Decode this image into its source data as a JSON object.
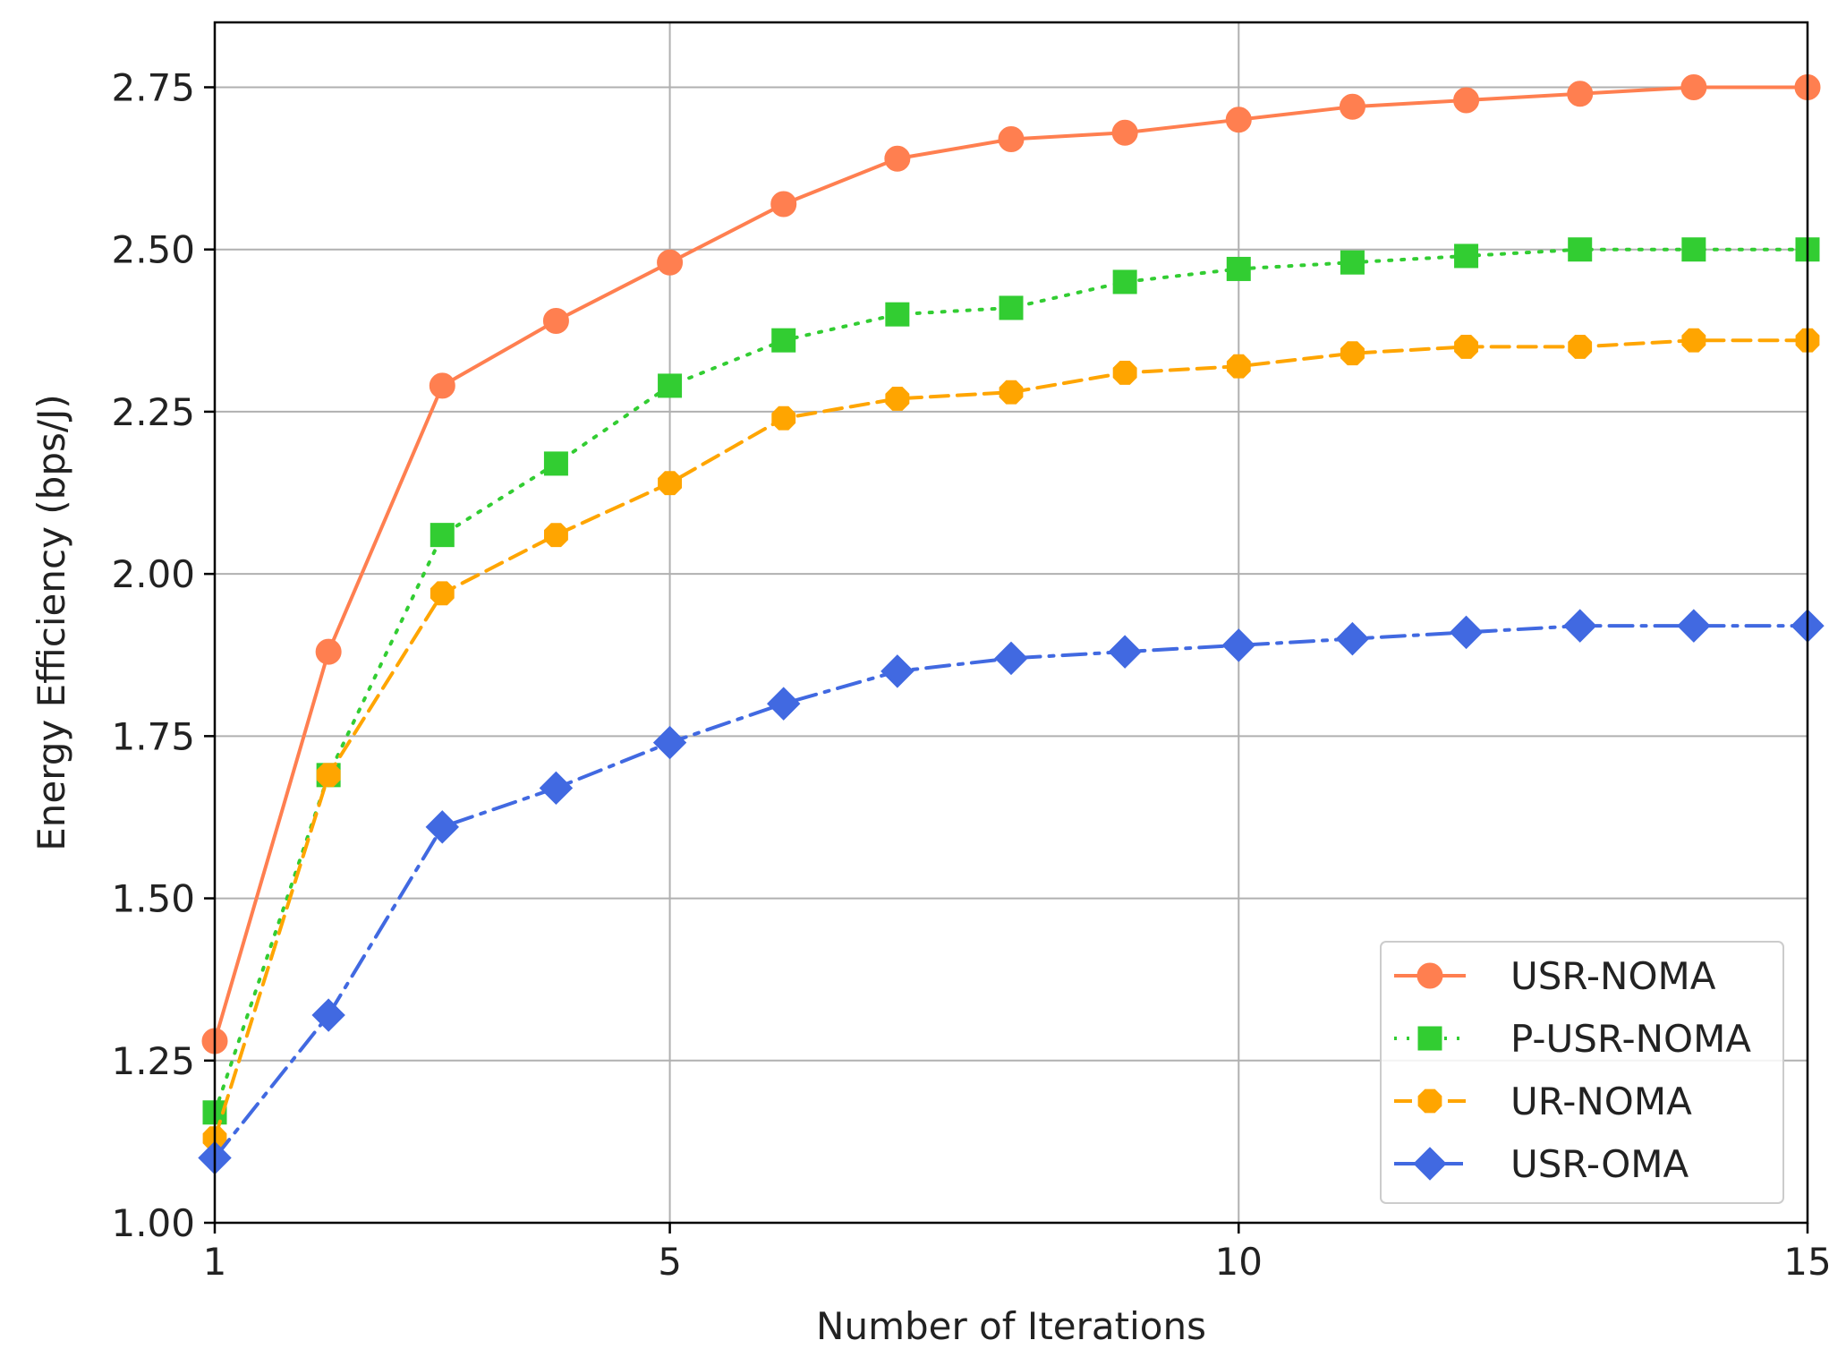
{
  "chart_data": {
    "type": "line",
    "title": "",
    "xlabel": "Number of Iterations",
    "ylabel": "Energy Efficiency (bps/J)",
    "xlim": [
      1,
      15
    ],
    "ylim": [
      1.0,
      2.85
    ],
    "xticks": [
      1,
      5,
      10,
      15
    ],
    "xtick_labels": [
      "1",
      "5",
      "10",
      "15"
    ],
    "yticks": [
      1.0,
      1.25,
      1.5,
      1.75,
      2.0,
      2.25,
      2.5,
      2.75
    ],
    "ytick_labels": [
      "1.00",
      "1.25",
      "1.50",
      "1.75",
      "2.00",
      "2.25",
      "2.50",
      "2.75"
    ],
    "grid": true,
    "legend_position": "bottom-right",
    "x": [
      1,
      2,
      3,
      4,
      5,
      6,
      7,
      8,
      9,
      10,
      11,
      12,
      13,
      14,
      15
    ],
    "series": [
      {
        "name": "USR-NOMA",
        "color": "#ff7f50",
        "line_style": "solid",
        "marker": "circle",
        "values": [
          1.28,
          1.88,
          2.29,
          2.39,
          2.48,
          2.57,
          2.64,
          2.67,
          2.68,
          2.7,
          2.72,
          2.73,
          2.74,
          2.75,
          2.75
        ]
      },
      {
        "name": "P-USR-NOMA",
        "color": "#32cd32",
        "line_style": "dotted",
        "marker": "square",
        "values": [
          1.17,
          1.69,
          2.06,
          2.17,
          2.29,
          2.36,
          2.4,
          2.41,
          2.45,
          2.47,
          2.48,
          2.49,
          2.5,
          2.5,
          2.5
        ]
      },
      {
        "name": "UR-NOMA",
        "color": "#ffa500",
        "line_style": "dashed",
        "marker": "octagon",
        "values": [
          1.13,
          1.69,
          1.97,
          2.06,
          2.14,
          2.24,
          2.27,
          2.28,
          2.31,
          2.32,
          2.34,
          2.35,
          2.35,
          2.36,
          2.36
        ]
      },
      {
        "name": "USR-OMA",
        "color": "#4169e1",
        "line_style": "dashdot",
        "marker": "diamond",
        "values": [
          1.1,
          1.32,
          1.61,
          1.67,
          1.74,
          1.8,
          1.85,
          1.87,
          1.88,
          1.89,
          1.9,
          1.91,
          1.92,
          1.92,
          1.92
        ]
      }
    ]
  }
}
